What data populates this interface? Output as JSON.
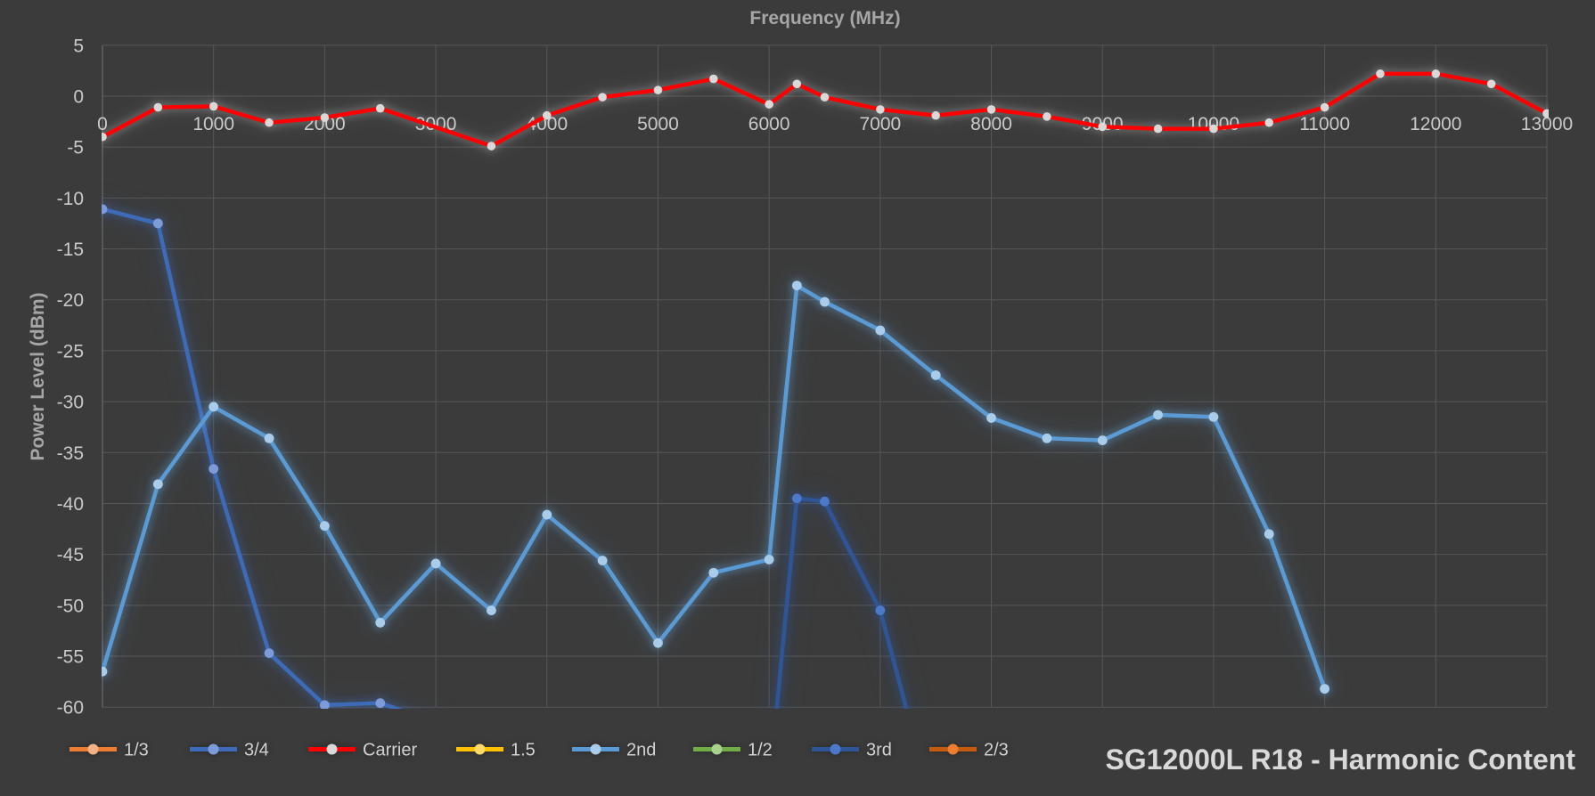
{
  "chart_data": {
    "type": "line",
    "title": "SG12000L R18 - Harmonic Content",
    "xlabel": "Frequency (MHz)",
    "ylabel": "Power Level (dBm)",
    "xlim": [
      0,
      13000
    ],
    "ylim": [
      -60,
      5
    ],
    "y_tick_step": 5,
    "x_ticks": [
      0,
      1000,
      2000,
      3000,
      4000,
      5000,
      6000,
      7000,
      8000,
      9000,
      10000,
      11000,
      12000,
      13000
    ],
    "grid": true,
    "legend_position": "bottom",
    "background_color": "#3b3b3b",
    "gridline_color": "#575757",
    "series": [
      {
        "name": "1/3",
        "color": "#ED7D31",
        "marker_color": "#F4B183",
        "points": []
      },
      {
        "name": "3/4",
        "color": "#3E6BB7",
        "marker_color": "#7D9BD9",
        "points": [
          [
            0,
            -11.1
          ],
          [
            500,
            -12.5
          ],
          [
            1000,
            -36.6
          ],
          [
            1500,
            -54.7
          ],
          [
            2000,
            -59.8
          ],
          [
            2500,
            -59.6
          ],
          [
            3000,
            -61.5
          ]
        ]
      },
      {
        "name": "Carrier",
        "color": "#FF0000",
        "marker_color": "#D9D9D9",
        "points": [
          [
            0,
            -4.0
          ],
          [
            500,
            -1.1
          ],
          [
            1000,
            -1.0
          ],
          [
            1500,
            -2.6
          ],
          [
            2000,
            -2.1
          ],
          [
            2500,
            -1.2
          ],
          [
            3500,
            -4.9
          ],
          [
            4000,
            -1.9
          ],
          [
            4500,
            -0.1
          ],
          [
            5000,
            0.6
          ],
          [
            5500,
            1.7
          ],
          [
            6000,
            -0.8
          ],
          [
            6250,
            1.2
          ],
          [
            6500,
            -0.1
          ],
          [
            7000,
            -1.3
          ],
          [
            7500,
            -1.9
          ],
          [
            8000,
            -1.3
          ],
          [
            8500,
            -2.0
          ],
          [
            9000,
            -3.0
          ],
          [
            9500,
            -3.2
          ],
          [
            10000,
            -3.2
          ],
          [
            10500,
            -2.6
          ],
          [
            11000,
            -1.1
          ],
          [
            11500,
            2.2
          ],
          [
            12000,
            2.2
          ],
          [
            12500,
            1.2
          ],
          [
            13000,
            -1.7
          ]
        ]
      },
      {
        "name": "1.5",
        "color": "#FFC000",
        "marker_color": "#FFD966",
        "points": []
      },
      {
        "name": "2nd",
        "color": "#5B9BD5",
        "marker_color": "#A8CCEA",
        "points": [
          [
            0,
            -56.5
          ],
          [
            500,
            -38.1
          ],
          [
            1000,
            -30.5
          ],
          [
            1500,
            -33.6
          ],
          [
            2000,
            -42.2
          ],
          [
            2500,
            -51.7
          ],
          [
            3000,
            -45.9
          ],
          [
            3500,
            -50.5
          ],
          [
            4000,
            -41.1
          ],
          [
            4500,
            -45.6
          ],
          [
            5000,
            -53.7
          ],
          [
            5500,
            -46.8
          ],
          [
            6000,
            -45.5
          ],
          [
            6250,
            -18.6
          ],
          [
            6500,
            -20.2
          ],
          [
            7000,
            -23.0
          ],
          [
            7500,
            -27.4
          ],
          [
            8000,
            -31.6
          ],
          [
            8500,
            -33.6
          ],
          [
            9000,
            -33.8
          ],
          [
            9500,
            -31.3
          ],
          [
            10000,
            -31.5
          ],
          [
            10500,
            -43.0
          ],
          [
            11000,
            -58.2
          ]
        ]
      },
      {
        "name": "1/2",
        "color": "#70AD47",
        "marker_color": "#A9D18E",
        "points": []
      },
      {
        "name": "3rd",
        "color": "#2F5597",
        "marker_color": "#4C78C9",
        "points": [
          [
            6000,
            -68
          ],
          [
            6250,
            -39.5
          ],
          [
            6500,
            -39.8
          ],
          [
            7000,
            -50.5
          ],
          [
            7500,
            -71
          ]
        ]
      },
      {
        "name": "2/3",
        "color": "#C55A11",
        "marker_color": "#ED7D31",
        "points": []
      }
    ]
  }
}
